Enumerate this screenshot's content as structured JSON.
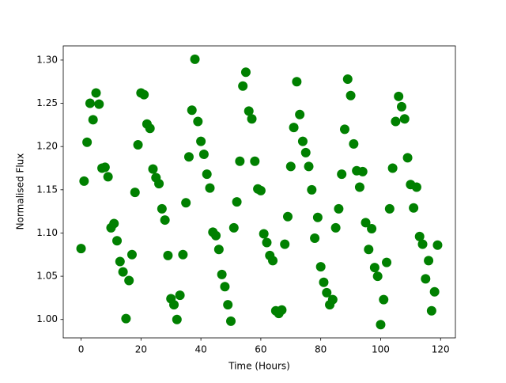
{
  "chart_data": {
    "type": "scatter",
    "xlabel": "Time (Hours)",
    "ylabel": "Normalised Flux",
    "series": [
      {
        "color": "#008000",
        "x": [
          0,
          1,
          2,
          3,
          4,
          5,
          6,
          7,
          8,
          9,
          10,
          11,
          12,
          13,
          14,
          15,
          16,
          17,
          18,
          19,
          20,
          21,
          22,
          23,
          24,
          25,
          26,
          27,
          28,
          29,
          30,
          31,
          32,
          33,
          34,
          35,
          36,
          37,
          38,
          39,
          40,
          41,
          42,
          43,
          44,
          45,
          46,
          47,
          48,
          49,
          50,
          51,
          52,
          53,
          54,
          55,
          56,
          57,
          58,
          59,
          60,
          61,
          62,
          63,
          64,
          65,
          66,
          67,
          68,
          69,
          70,
          71,
          72,
          73,
          74,
          75,
          76,
          77,
          78,
          79,
          80,
          81,
          82,
          83,
          84,
          85,
          86,
          87,
          88,
          89,
          90,
          91,
          92,
          93,
          94,
          95,
          96,
          97,
          98,
          99,
          100,
          101,
          102,
          103,
          104,
          105,
          106,
          107,
          108,
          109,
          110,
          111,
          112,
          113,
          114,
          115,
          116,
          117,
          118,
          119
        ],
        "values": [
          1.082,
          1.16,
          1.205,
          1.25,
          1.231,
          1.262,
          1.249,
          1.175,
          1.176,
          1.165,
          1.106,
          1.111,
          1.091,
          1.067,
          1.055,
          1.001,
          1.045,
          1.075,
          1.147,
          1.202,
          1.262,
          1.26,
          1.226,
          1.221,
          1.174,
          1.164,
          1.157,
          1.128,
          1.115,
          1.074,
          1.024,
          1.017,
          1.0,
          1.028,
          1.075,
          1.135,
          1.188,
          1.242,
          1.301,
          1.229,
          1.206,
          1.191,
          1.168,
          1.152,
          1.101,
          1.097,
          1.081,
          1.052,
          1.038,
          1.017,
          0.998,
          1.106,
          1.136,
          1.183,
          1.27,
          1.286,
          1.241,
          1.232,
          1.183,
          1.151,
          1.149,
          1.099,
          1.089,
          1.074,
          1.068,
          1.01,
          1.007,
          1.011,
          1.087,
          1.119,
          1.177,
          1.222,
          1.275,
          1.237,
          1.206,
          1.193,
          1.177,
          1.15,
          1.094,
          1.118,
          1.061,
          1.043,
          1.031,
          1.017,
          1.023,
          1.106,
          1.128,
          1.168,
          1.22,
          1.278,
          1.259,
          1.203,
          1.172,
          1.153,
          1.171,
          1.112,
          1.081,
          1.105,
          1.06,
          1.05,
          0.994,
          1.023,
          1.066,
          1.128,
          1.175,
          1.229,
          1.258,
          1.246,
          1.232,
          1.187,
          1.156,
          1.129,
          1.153,
          1.096,
          1.087,
          1.047,
          1.068,
          1.01,
          1.032,
          1.086
        ]
      }
    ],
    "xlim": [
      -5.95,
      124.95
    ],
    "ylim": [
      0.9787,
      1.3164
    ],
    "xticks": [
      0,
      20,
      40,
      60,
      80,
      100,
      120
    ],
    "yticks": [
      {
        "value": 1.0,
        "label": "1.00"
      },
      {
        "value": 1.05,
        "label": "1.05"
      },
      {
        "value": 1.1,
        "label": "1.10"
      },
      {
        "value": 1.15,
        "label": "1.15"
      },
      {
        "value": 1.2,
        "label": "1.20"
      },
      {
        "value": 1.25,
        "label": "1.25"
      },
      {
        "value": 1.3,
        "label": "1.30"
      }
    ]
  }
}
